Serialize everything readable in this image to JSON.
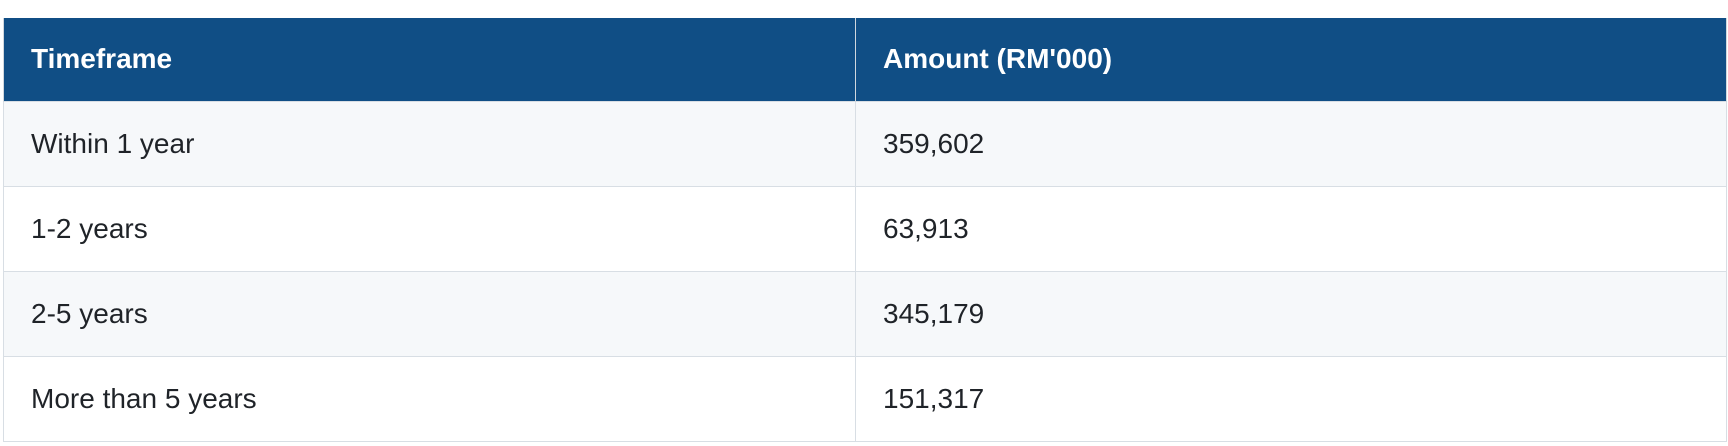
{
  "table": {
    "headers": [
      "Timeframe",
      "Amount (RM'000)"
    ],
    "rows": [
      {
        "timeframe": "Within 1 year",
        "amount": "359,602"
      },
      {
        "timeframe": "1-2 years",
        "amount": "63,913"
      },
      {
        "timeframe": "2-5 years",
        "amount": "345,179"
      },
      {
        "timeframe": "More than 5 years",
        "amount": "151,317"
      }
    ]
  },
  "colors": {
    "header_bg": "#104e85",
    "header_text": "#ffffff",
    "row_alt_bg": "#f6f8fa",
    "border": "#d8dee4"
  }
}
